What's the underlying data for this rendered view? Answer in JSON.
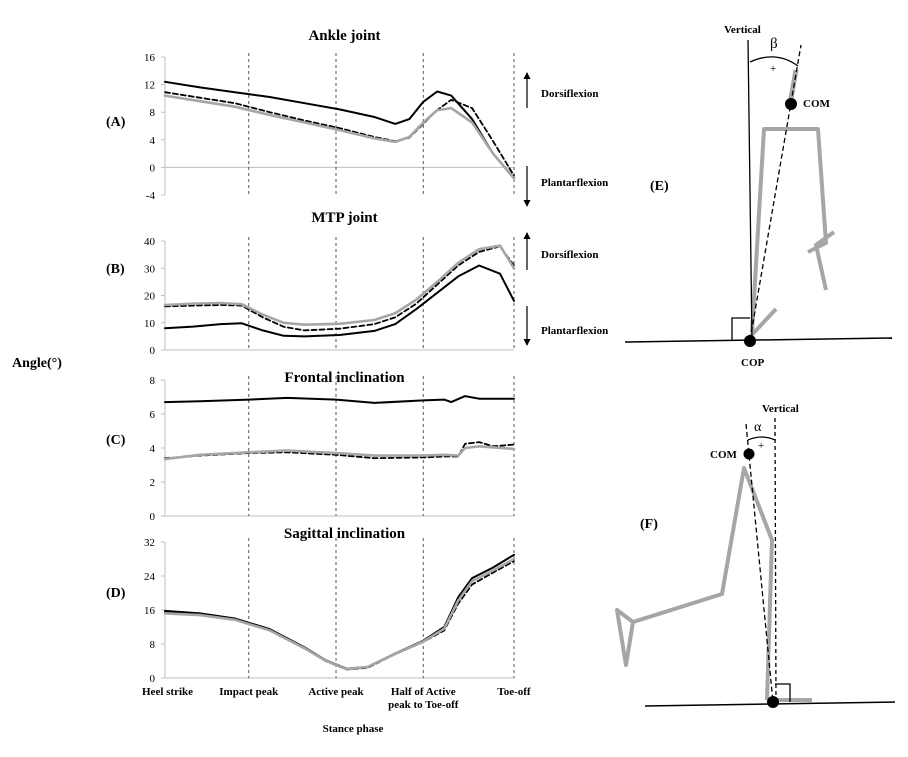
{
  "figure": {
    "y_axis_label": "Angle(°)",
    "x_axis_label": "Stance phase",
    "x_tick_labels": [
      "Heel strike",
      "Impact peak",
      "Active peak",
      "Half of Active peak to Toe-off",
      "Toe-off"
    ],
    "colors": {
      "series_a": "#000000",
      "series_b": "#000000",
      "series_c": "#a6a6a6"
    }
  },
  "chart_data": [
    {
      "type": "line",
      "panel_label": "(A)",
      "title": "Ankle joint",
      "ylim": [
        -4,
        16
      ],
      "yticks": [
        -4,
        0,
        4,
        8,
        12,
        16
      ],
      "xlim": [
        0,
        100
      ],
      "event_x": [
        0,
        24,
        49,
        74,
        100
      ],
      "annotations": [
        "Dorsiflexion",
        "Plantarflexion"
      ],
      "series": [
        {
          "style": "solid-black",
          "x": [
            0,
            10,
            20,
            30,
            40,
            50,
            60,
            66,
            70,
            74,
            78,
            82,
            88,
            94,
            100
          ],
          "y": [
            12.4,
            11.6,
            10.9,
            10.2,
            9.3,
            8.4,
            7.3,
            6.3,
            7.0,
            9.5,
            11.0,
            10.4,
            7.0,
            2.0,
            -1.5
          ]
        },
        {
          "style": "dashed-black",
          "x": [
            0,
            10,
            20,
            30,
            40,
            50,
            60,
            66,
            70,
            74,
            78,
            82,
            88,
            94,
            100
          ],
          "y": [
            10.9,
            10.1,
            9.3,
            8.0,
            6.8,
            5.7,
            4.4,
            3.8,
            4.3,
            6.3,
            8.3,
            9.8,
            8.6,
            3.8,
            -1.2
          ]
        },
        {
          "style": "solid-gray",
          "x": [
            0,
            10,
            20,
            30,
            40,
            50,
            60,
            66,
            70,
            74,
            78,
            82,
            88,
            94,
            100
          ],
          "y": [
            10.4,
            9.6,
            8.8,
            7.6,
            6.5,
            5.4,
            4.2,
            3.7,
            4.4,
            6.5,
            8.3,
            8.6,
            6.5,
            2.0,
            -1.6
          ]
        }
      ]
    },
    {
      "type": "line",
      "panel_label": "(B)",
      "title": "MTP joint",
      "ylim": [
        0,
        40
      ],
      "yticks": [
        0,
        10,
        20,
        30,
        40
      ],
      "xlim": [
        0,
        100
      ],
      "event_x": [
        0,
        24,
        49,
        74,
        100
      ],
      "annotations": [
        "Dorsiflexion",
        "Plantarflexion"
      ],
      "series": [
        {
          "style": "solid-black",
          "x": [
            0,
            8,
            16,
            22,
            28,
            34,
            40,
            50,
            60,
            66,
            72,
            78,
            84,
            90,
            96,
            100
          ],
          "y": [
            8,
            8.6,
            9.5,
            9.8,
            7.2,
            5.2,
            5,
            5.5,
            7,
            9.5,
            15,
            21,
            27,
            31,
            28,
            18
          ]
        },
        {
          "style": "dashed-black",
          "x": [
            0,
            8,
            16,
            22,
            28,
            34,
            40,
            50,
            60,
            66,
            72,
            78,
            84,
            90,
            96,
            100
          ],
          "y": [
            16,
            16.3,
            16.5,
            16.3,
            12,
            8.5,
            7.2,
            7.8,
            9.5,
            12,
            17,
            24,
            31,
            36,
            38,
            31
          ]
        },
        {
          "style": "solid-gray",
          "x": [
            0,
            8,
            16,
            22,
            28,
            34,
            40,
            50,
            60,
            66,
            72,
            78,
            84,
            90,
            96,
            100
          ],
          "y": [
            16.5,
            17,
            17.2,
            16.8,
            13,
            10,
            9.3,
            9.6,
            11,
            13.5,
            18.5,
            25,
            32,
            37,
            38.3,
            30
          ]
        }
      ]
    },
    {
      "type": "line",
      "panel_label": "(C)",
      "title": "Frontal inclination",
      "ylim": [
        0,
        8
      ],
      "yticks": [
        0,
        2,
        4,
        6,
        8
      ],
      "xlim": [
        0,
        100
      ],
      "event_x": [
        0,
        24,
        49,
        74,
        100
      ],
      "annotations": [],
      "series": [
        {
          "style": "solid-black",
          "x": [
            0,
            10,
            24,
            35,
            49,
            60,
            74,
            80,
            82,
            86,
            90,
            100
          ],
          "y": [
            6.7,
            6.75,
            6.85,
            6.95,
            6.85,
            6.65,
            6.8,
            6.85,
            6.7,
            7.05,
            6.9,
            6.9
          ]
        },
        {
          "style": "dashed-black",
          "x": [
            0,
            10,
            24,
            35,
            49,
            60,
            74,
            80,
            84,
            86,
            90,
            94,
            100
          ],
          "y": [
            3.4,
            3.55,
            3.7,
            3.75,
            3.6,
            3.4,
            3.45,
            3.5,
            3.5,
            4.25,
            4.35,
            4.1,
            4.2
          ]
        },
        {
          "style": "solid-gray",
          "x": [
            0,
            10,
            24,
            35,
            49,
            60,
            74,
            80,
            84,
            86,
            90,
            100
          ],
          "y": [
            3.35,
            3.6,
            3.75,
            3.85,
            3.7,
            3.55,
            3.55,
            3.6,
            3.55,
            4.0,
            4.1,
            3.95
          ]
        }
      ]
    },
    {
      "type": "line",
      "panel_label": "(D)",
      "title": "Sagittal inclination",
      "ylim": [
        0,
        32
      ],
      "yticks": [
        0,
        8,
        16,
        24,
        32
      ],
      "xlim": [
        0,
        100
      ],
      "event_x": [
        0,
        24,
        49,
        74,
        100
      ],
      "annotations": [],
      "series": [
        {
          "style": "solid-black",
          "x": [
            0,
            10,
            20,
            30,
            40,
            46,
            52,
            58,
            66,
            74,
            80,
            84,
            88,
            94,
            100
          ],
          "y": [
            15.8,
            15.2,
            14,
            11.5,
            7.2,
            4.2,
            2.2,
            2.6,
            5.8,
            8.8,
            12,
            19,
            23.5,
            26,
            29
          ]
        },
        {
          "style": "dashed-black",
          "x": [
            0,
            10,
            20,
            30,
            40,
            46,
            52,
            58,
            66,
            74,
            80,
            84,
            88,
            94,
            100
          ],
          "y": [
            15.5,
            15.0,
            13.8,
            11.3,
            7.0,
            4.0,
            2.0,
            2.4,
            5.6,
            8.5,
            11.2,
            17.5,
            22,
            24.8,
            27.5
          ]
        },
        {
          "style": "solid-gray",
          "x": [
            0,
            10,
            20,
            30,
            40,
            46,
            52,
            58,
            66,
            74,
            80,
            84,
            88,
            94,
            100
          ],
          "y": [
            15.2,
            14.8,
            13.7,
            11.2,
            7.0,
            4.1,
            2.1,
            2.6,
            5.7,
            8.6,
            11.6,
            18.2,
            22.8,
            25.3,
            28
          ]
        }
      ]
    }
  ],
  "diagrams": {
    "e": {
      "panel_label": "(E)",
      "vertical_label": "Vertical",
      "angle_label": "β",
      "sign_label": "+",
      "com_label": "COM",
      "cop_label": "COP"
    },
    "f": {
      "panel_label": "(F)",
      "vertical_label": "Vertical",
      "angle_label": "α",
      "sign_label": "+",
      "com_label": "COM"
    }
  }
}
